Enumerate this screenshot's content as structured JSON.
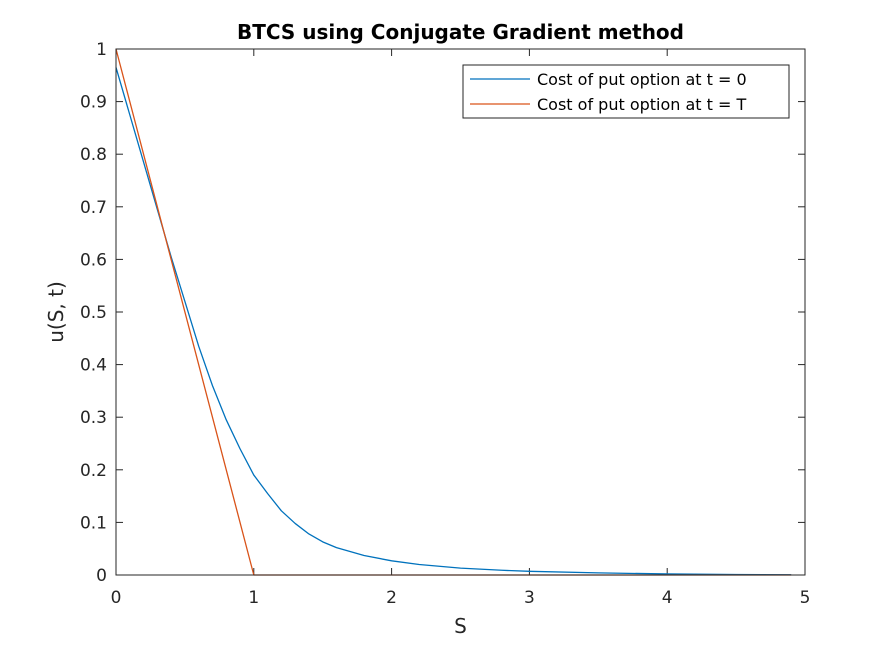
{
  "chart_data": {
    "type": "line",
    "title": "BTCS using Conjugate Gradient method",
    "xlabel": "S",
    "ylabel": "u(S, t)",
    "xlim": [
      0,
      5
    ],
    "ylim": [
      0,
      1
    ],
    "xticks": [
      "0",
      "1",
      "2",
      "3",
      "4",
      "5"
    ],
    "yticks": [
      "0",
      "0.1",
      "0.2",
      "0.3",
      "0.4",
      "0.5",
      "0.6",
      "0.7",
      "0.8",
      "0.9",
      "1"
    ],
    "grid": false,
    "legend_position": "top-right",
    "series": [
      {
        "name": "Cost of put option at t = 0",
        "color": "#0072BD",
        "x": [
          0,
          0.1,
          0.2,
          0.3,
          0.4,
          0.5,
          0.6,
          0.7,
          0.8,
          0.9,
          1.0,
          1.1,
          1.2,
          1.3,
          1.4,
          1.5,
          1.6,
          1.8,
          2.0,
          2.2,
          2.5,
          2.8,
          3.0,
          3.5,
          4.0,
          4.5,
          4.9
        ],
        "y": [
          0.965,
          0.875,
          0.785,
          0.695,
          0.605,
          0.52,
          0.435,
          0.36,
          0.295,
          0.24,
          0.19,
          0.155,
          0.122,
          0.098,
          0.078,
          0.063,
          0.052,
          0.037,
          0.027,
          0.02,
          0.013,
          0.009,
          0.007,
          0.004,
          0.002,
          0.001,
          0.0005
        ]
      },
      {
        "name": "Cost of put option at t = T",
        "color": "#D95319",
        "x": [
          0,
          1.0,
          1.02,
          4.9
        ],
        "y": [
          1.0,
          0.0,
          0.0,
          0.0
        ]
      }
    ]
  }
}
